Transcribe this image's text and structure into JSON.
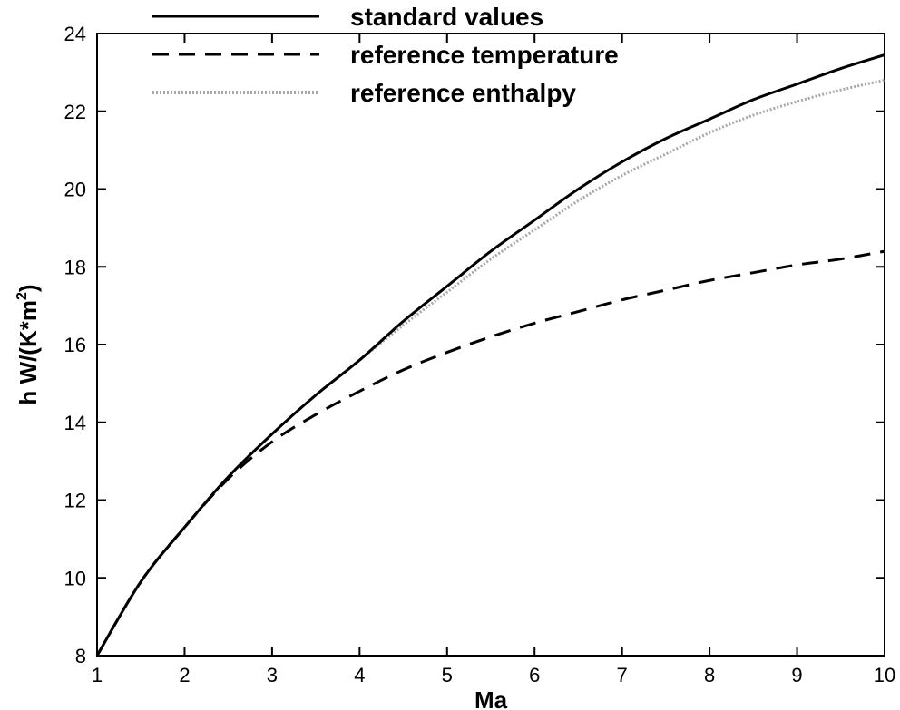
{
  "chart_data": {
    "type": "line",
    "xlabel": "Ma",
    "ylabel_prefix": "h  W/(K*m",
    "ylabel_sup": "2",
    "ylabel_suffix": ")",
    "xlim": [
      1,
      10
    ],
    "ylim": [
      8,
      24
    ],
    "xticks": [
      "1",
      "2",
      "3",
      "4",
      "5",
      "6",
      "7",
      "8",
      "9",
      "10"
    ],
    "yticks": [
      "8",
      "10",
      "12",
      "14",
      "16",
      "18",
      "20",
      "22",
      "24"
    ],
    "grid": false,
    "legend_position": "top",
    "x": [
      1,
      1.5,
      2,
      2.5,
      3,
      3.5,
      4,
      4.5,
      5,
      5.5,
      6,
      6.5,
      7,
      7.5,
      8,
      8.5,
      9,
      9.5,
      10
    ],
    "series": [
      {
        "name": "standard values",
        "style": "solid",
        "color": "#000000",
        "values": [
          8.0,
          9.9,
          11.3,
          12.6,
          13.7,
          14.7,
          15.6,
          16.6,
          17.5,
          18.4,
          19.2,
          20.0,
          20.7,
          21.3,
          21.8,
          22.3,
          22.7,
          23.1,
          23.45
        ]
      },
      {
        "name": "reference temperature",
        "style": "dashed",
        "color": "#000000",
        "values": [
          8.0,
          9.9,
          11.3,
          12.55,
          13.5,
          14.2,
          14.8,
          15.35,
          15.8,
          16.2,
          16.55,
          16.85,
          17.15,
          17.4,
          17.65,
          17.85,
          18.05,
          18.2,
          18.4
        ]
      },
      {
        "name": "reference enthalpy",
        "style": "dotted",
        "color": "#a8a8a8",
        "values": [
          8.0,
          9.9,
          11.3,
          12.6,
          13.7,
          14.7,
          15.6,
          16.5,
          17.35,
          18.2,
          18.95,
          19.7,
          20.35,
          20.9,
          21.45,
          21.9,
          22.25,
          22.55,
          22.8
        ]
      }
    ]
  }
}
